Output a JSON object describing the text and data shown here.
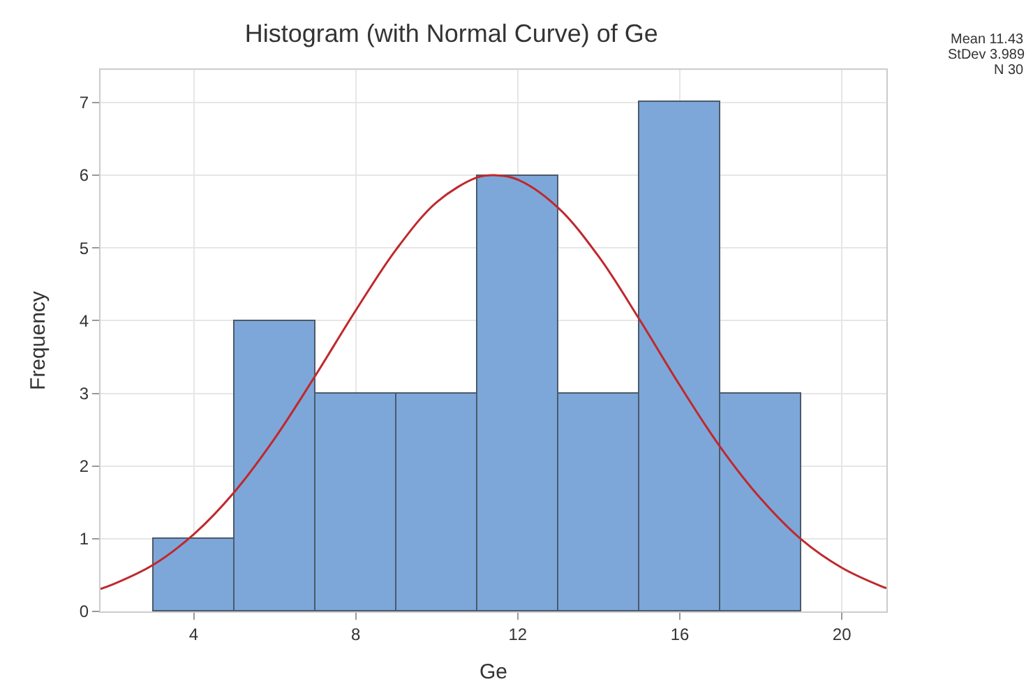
{
  "chart_data": {
    "type": "histogram",
    "title": "Histogram (with Normal Curve) of Ge",
    "xlabel": "Ge",
    "ylabel": "Frequency",
    "bins": [
      3,
      5,
      7,
      9,
      11,
      13,
      15,
      17,
      19
    ],
    "values": [
      1,
      4,
      3,
      3,
      6,
      3,
      7,
      3
    ],
    "color": "#7da7d9",
    "series": [
      {
        "type": "line",
        "color": "#c0282d",
        "x": [
          1.7,
          2,
          3,
          4,
          5,
          6,
          7,
          8,
          9,
          10,
          11,
          11.43,
          12,
          13,
          14,
          15,
          16,
          17,
          18,
          19,
          20,
          21,
          21.1
        ],
        "values": [
          0.31,
          0.37,
          0.64,
          1.06,
          1.64,
          2.38,
          3.24,
          4.14,
          4.98,
          5.63,
          5.97,
          6.0,
          5.94,
          5.55,
          4.88,
          4.02,
          3.11,
          2.26,
          1.55,
          0.99,
          0.6,
          0.34,
          0.32
        ]
      }
    ],
    "xlim": [
      1.7,
      21.1
    ],
    "xticks": [
      4,
      8,
      12,
      16,
      20
    ],
    "ylim": [
      0,
      7.45
    ],
    "yticks": [
      0,
      1,
      2,
      3,
      4,
      5,
      6,
      7
    ],
    "grid": true,
    "legend": false,
    "annotations": [
      "Mean 11.43",
      "StDev 3.989",
      "N 30"
    ]
  }
}
